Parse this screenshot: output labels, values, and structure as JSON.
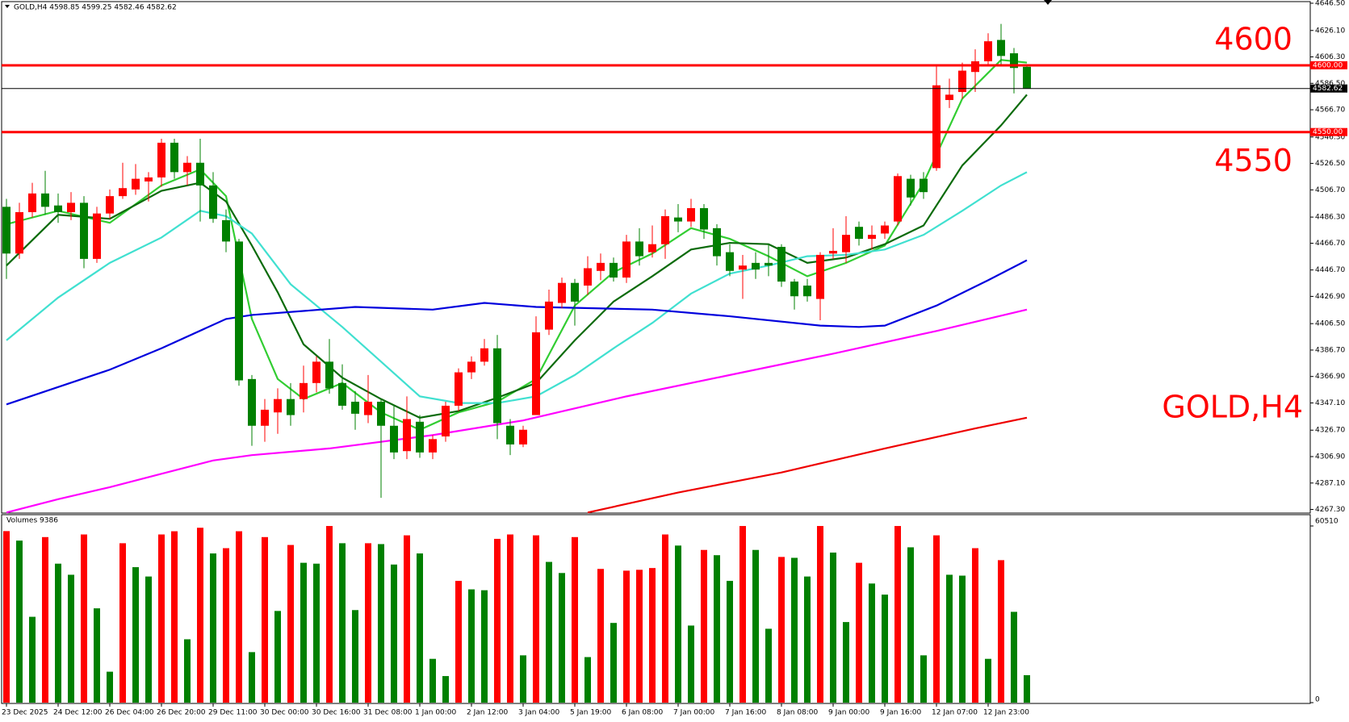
{
  "chart_data": [
    {
      "type": "candlestick",
      "header": "GOLD,H4  4598.85 4599.25 4582.46 4582.62",
      "label": "GOLD,H4",
      "bull_color": "#ff0000",
      "bear_color": "#008000",
      "ylim": [
        4264.6,
        4646.5
      ],
      "yticks": [
        {
          "value": 4646.5,
          "label": "4646.50"
        },
        {
          "value": 4626.1,
          "label": "4626.10"
        },
        {
          "value": 4606.3,
          "label": "4606.30"
        },
        {
          "value": 4586.5,
          "label": "4586.50"
        },
        {
          "value": 4566.7,
          "label": "4566.70"
        },
        {
          "value": 4546.3,
          "label": "4546.30"
        },
        {
          "value": 4526.5,
          "label": "4526.50"
        },
        {
          "value": 4506.7,
          "label": "4506.70"
        },
        {
          "value": 4486.3,
          "label": "4486.30"
        },
        {
          "value": 4466.7,
          "label": "4466.70"
        },
        {
          "value": 4446.7,
          "label": "4446.70"
        },
        {
          "value": 4426.9,
          "label": "4426.90"
        },
        {
          "value": 4406.5,
          "label": "4406.50"
        },
        {
          "value": 4386.7,
          "label": "4386.70"
        },
        {
          "value": 4366.9,
          "label": "4366.90"
        },
        {
          "value": 4347.1,
          "label": "4347.10"
        },
        {
          "value": 4326.7,
          "label": "4326.70"
        },
        {
          "value": 4306.9,
          "label": "4306.90"
        },
        {
          "value": 4287.1,
          "label": "4287.10"
        },
        {
          "value": 4267.3,
          "label": "4267.30"
        }
      ],
      "levels": [
        {
          "value": 4600,
          "label": "4600.00",
          "color": "#ff0000"
        },
        {
          "value": 4550,
          "label": "4550.00",
          "color": "#ff0000"
        }
      ],
      "price": {
        "value": 4582.62,
        "label": "4582.62"
      },
      "ohlc": [
        [
          4494,
          4500,
          4440,
          4459
        ],
        [
          4459,
          4497,
          4455,
          4490
        ],
        [
          4490,
          4512,
          4486,
          4504
        ],
        [
          4504,
          4521,
          4488,
          4494
        ],
        [
          4495,
          4504,
          4482,
          4490
        ],
        [
          4490,
          4505,
          4484,
          4497
        ],
        [
          4497,
          4502,
          4448,
          4455
        ],
        [
          4455,
          4494,
          4452,
          4489
        ],
        [
          4489,
          4507,
          4485,
          4502
        ],
        [
          4502,
          4527,
          4500,
          4508
        ],
        [
          4507,
          4526,
          4503,
          4515
        ],
        [
          4513,
          4520,
          4498,
          4516
        ],
        [
          4516,
          4545,
          4509,
          4542
        ],
        [
          4542,
          4545,
          4515,
          4520
        ],
        [
          4520,
          4532,
          4510,
          4527
        ],
        [
          4527,
          4545,
          4483,
          4510
        ],
        [
          4510,
          4520,
          4482,
          4485
        ],
        [
          4484,
          4492,
          4460,
          4468
        ],
        [
          4468,
          4470,
          4360,
          4364
        ],
        [
          4365,
          4368,
          4315,
          4330
        ],
        [
          4330,
          4350,
          4318,
          4342
        ],
        [
          4340,
          4358,
          4324,
          4350
        ],
        [
          4350,
          4362,
          4330,
          4338
        ],
        [
          4350,
          4375,
          4340,
          4362
        ],
        [
          4362,
          4382,
          4355,
          4378
        ],
        [
          4378,
          4395,
          4354,
          4358
        ],
        [
          4362,
          4376,
          4342,
          4345
        ],
        [
          4348,
          4356,
          4327,
          4339
        ],
        [
          4338,
          4368,
          4332,
          4348
        ],
        [
          4348,
          4350,
          4276,
          4330
        ],
        [
          4330,
          4345,
          4305,
          4310
        ],
        [
          4311,
          4352,
          4305,
          4335
        ],
        [
          4333,
          4338,
          4306,
          4310
        ],
        [
          4310,
          4323,
          4305,
          4320
        ],
        [
          4322,
          4348,
          4318,
          4345
        ],
        [
          4345,
          4373,
          4341,
          4370
        ],
        [
          4370,
          4382,
          4365,
          4378
        ],
        [
          4378,
          4395,
          4375,
          4388
        ],
        [
          4388,
          4398,
          4320,
          4332
        ],
        [
          4330,
          4335,
          4308,
          4316
        ],
        [
          4316,
          4330,
          4314,
          4327
        ],
        [
          4338,
          4412,
          4340,
          4400
        ],
        [
          4402,
          4432,
          4398,
          4423
        ],
        [
          4422,
          4441,
          4418,
          4437
        ],
        [
          4437,
          4440,
          4405,
          4423
        ],
        [
          4435,
          4457,
          4428,
          4448
        ],
        [
          4446,
          4459,
          4439,
          4452
        ],
        [
          4452,
          4456,
          4438,
          4441
        ],
        [
          4441,
          4473,
          4437,
          4468
        ],
        [
          4468,
          4478,
          4450,
          4457
        ],
        [
          4460,
          4480,
          4456,
          4466
        ],
        [
          4466,
          4492,
          4455,
          4487
        ],
        [
          4486,
          4496,
          4475,
          4483
        ],
        [
          4483,
          4500,
          4479,
          4493
        ],
        [
          4493,
          4496,
          4470,
          4477
        ],
        [
          4478,
          4481,
          4450,
          4457
        ],
        [
          4460,
          4466,
          4442,
          4446
        ],
        [
          4447,
          4458,
          4425,
          4450
        ],
        [
          4452,
          4460,
          4440,
          4447
        ],
        [
          4452,
          4466,
          4442,
          4450
        ],
        [
          4464,
          4466,
          4434,
          4438
        ],
        [
          4438,
          4440,
          4417,
          4427
        ],
        [
          4435,
          4440,
          4423,
          4427
        ],
        [
          4425,
          4460,
          4409,
          4458
        ],
        [
          4459,
          4478,
          4455,
          4461
        ],
        [
          4460,
          4487,
          4452,
          4473
        ],
        [
          4479,
          4483,
          4465,
          4470
        ],
        [
          4470,
          4480,
          4462,
          4473
        ],
        [
          4474,
          4483,
          4470,
          4480
        ],
        [
          4483,
          4519,
          4480,
          4517
        ],
        [
          4515,
          4518,
          4495,
          4501
        ],
        [
          4515,
          4520,
          4500,
          4505
        ],
        [
          4523,
          4600,
          4521,
          4585
        ],
        [
          4574,
          4590,
          4568,
          4578
        ],
        [
          4580,
          4602,
          4575,
          4596
        ],
        [
          4595,
          4612,
          4580,
          4603
        ],
        [
          4603,
          4624,
          4600,
          4618
        ],
        [
          4619,
          4631,
          4600,
          4607
        ],
        [
          4609,
          4613,
          4579,
          4598
        ],
        [
          4598.85,
          4599.25,
          4582.46,
          4582.62
        ]
      ],
      "moving_averages": [
        {
          "color": "#32cd32",
          "x": [
            0,
            4,
            8,
            12,
            15,
            17,
            19,
            21,
            23,
            26,
            29,
            32,
            35,
            38,
            41,
            44,
            47,
            50,
            53,
            56,
            59,
            62,
            65,
            68,
            71,
            74,
            77,
            79
          ],
          "values": [
            4481,
            4491,
            4482,
            4510,
            4522,
            4502,
            4410,
            4365,
            4350,
            4362,
            4340,
            4327,
            4340,
            4348,
            4365,
            4420,
            4445,
            4459,
            4478,
            4470,
            4457,
            4442,
            4452,
            4465,
            4512,
            4575,
            4604,
            4602
          ]
        },
        {
          "color": "#0b6b0b",
          "x": [
            0,
            4,
            8,
            12,
            15,
            17,
            19,
            21,
            23,
            26,
            29,
            32,
            35,
            38,
            41,
            44,
            47,
            50,
            53,
            56,
            59,
            62,
            65,
            68,
            71,
            74,
            77,
            79
          ],
          "values": [
            4450,
            4488,
            4485,
            4506,
            4512,
            4498,
            4465,
            4430,
            4391,
            4366,
            4350,
            4336,
            4341,
            4351,
            4362,
            4394,
            4423,
            4442,
            4462,
            4467,
            4466,
            4452,
            4456,
            4466,
            4480,
            4525,
            4555,
            4578
          ]
        },
        {
          "color": "#40e0d0",
          "x": [
            0,
            4,
            8,
            12,
            15,
            17,
            19,
            22,
            26,
            29,
            32,
            35,
            38,
            41,
            44,
            47,
            50,
            53,
            56,
            59,
            62,
            65,
            68,
            71,
            74,
            77,
            79
          ],
          "values": [
            4394,
            4426,
            4452,
            4471,
            4491,
            4487,
            4474,
            4436,
            4404,
            4378,
            4352,
            4347,
            4347,
            4352,
            4368,
            4388,
            4407,
            4429,
            4444,
            4450,
            4457,
            4458,
            4462,
            4473,
            4491,
            4510,
            4520
          ]
        },
        {
          "color": "#0000dd",
          "x": [
            0,
            8,
            12,
            17,
            19,
            27,
            33,
            37,
            41,
            50,
            56,
            63,
            66,
            68,
            72,
            76,
            79
          ],
          "values": [
            4346,
            4372,
            4388,
            4410,
            4413,
            4419,
            4417,
            4422,
            4419,
            4417,
            4412,
            4405,
            4404,
            4405,
            4420,
            4439,
            4454
          ]
        },
        {
          "color": "#ff00ff",
          "x": [
            0,
            4,
            8,
            12,
            16,
            19,
            25,
            33,
            40,
            48,
            56,
            64,
            72,
            79
          ],
          "values": [
            4265,
            4275,
            4284,
            4294,
            4304,
            4308,
            4313,
            4323,
            4334,
            4352,
            4368,
            4384,
            4401,
            4417
          ]
        },
        {
          "color": "#ee0000",
          "x": [
            45,
            52,
            60,
            68,
            75,
            79
          ],
          "values": [
            4265,
            4280,
            4295,
            4313,
            4328,
            4336
          ]
        }
      ]
    },
    {
      "type": "volume",
      "title": "Volumes 9386",
      "rise_color": "#ff0000",
      "fall_color": "#008000",
      "ylim": [
        0,
        60510
      ],
      "yticks": [
        0,
        60510
      ],
      "categories": [
        "23 Dec 2025",
        null,
        null,
        null,
        "24 Dec 12:00",
        null,
        null,
        null,
        "26 Dec 04:00",
        null,
        null,
        null,
        "26 Dec 20:00",
        null,
        null,
        null,
        "29 Dec 11:00",
        null,
        null,
        null,
        "30 Dec 00:00",
        null,
        null,
        null,
        "30 Dec 16:00",
        null,
        null,
        null,
        "31 Dec 08:00",
        null,
        null,
        null,
        "1 Jan 00:00",
        null,
        null,
        null,
        "2 Jan 12:00",
        null,
        null,
        null,
        "3 Jan 04:00",
        null,
        null,
        null,
        "5 Jan 19:00",
        null,
        null,
        null,
        "6 Jan 08:00",
        null,
        null,
        null,
        "7 Jan 00:00",
        null,
        null,
        null,
        "7 Jan 16:00",
        null,
        null,
        null,
        "8 Jan 08:00",
        null,
        null,
        null,
        "9 Jan 00:00",
        null,
        null,
        null,
        "9 Jan 16:00",
        null,
        null,
        null,
        "12 Jan 07:00",
        null,
        null,
        null,
        "12 Jan 23:00",
        null,
        null,
        null
      ],
      "values": [
        58750,
        55500,
        29400,
        56700,
        47600,
        43800,
        57600,
        32300,
        10600,
        54600,
        46400,
        43200,
        57600,
        58700,
        21700,
        59900,
        51100,
        52900,
        58700,
        17300,
        56700,
        31400,
        54000,
        47900,
        47600,
        60500,
        54600,
        31700,
        54600,
        54300,
        47300,
        57300,
        51100,
        15000,
        9100,
        41700,
        38800,
        38500,
        56100,
        57600,
        16200,
        57300,
        48200,
        44400,
        56700,
        15600,
        45800,
        27300,
        45200,
        45500,
        46100,
        57600,
        53800,
        26400,
        52300,
        50500,
        41700,
        60500,
        52300,
        25300,
        49900,
        49600,
        43200,
        60500,
        51400,
        27600,
        47900,
        40800,
        37000,
        60500,
        53200,
        16200,
        57300,
        43800,
        43500,
        52900,
        15000,
        48800,
        31100,
        9400
      ]
    }
  ]
}
